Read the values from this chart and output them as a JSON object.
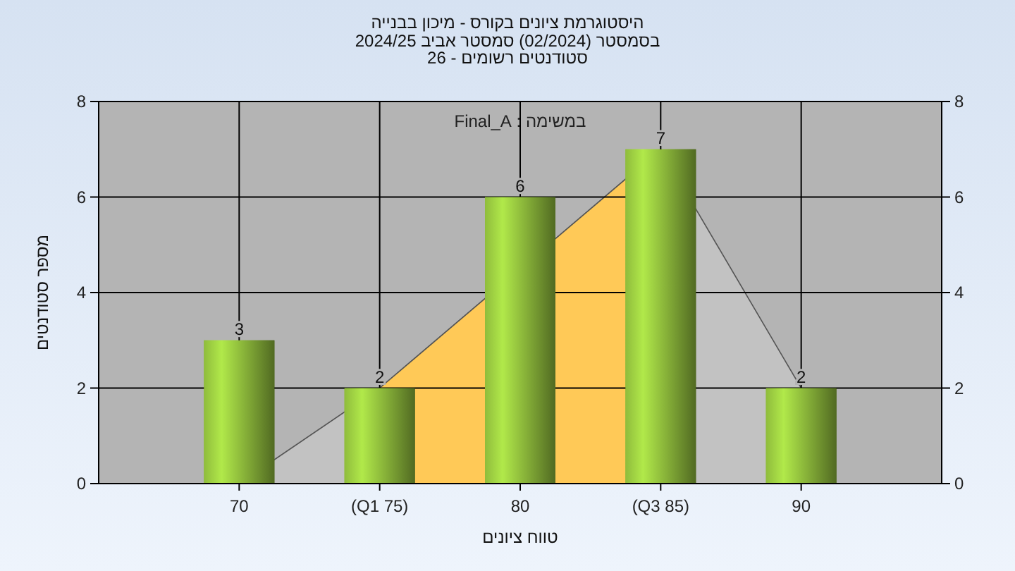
{
  "chart_data": {
    "type": "bar",
    "title": "היסטוגרמת ציונים בקורס - מיכון בבנייה",
    "subtitle": "בסמסטר  (02/2024)  סמסטר אביב 2024/25\nסטודנטים רשומים - 26",
    "xlabel": "טווח ציונים",
    "ylabel": "מספר סטודנטים",
    "annotations": [
      "במשימה : Final_A"
    ],
    "categories": [
      "70",
      "(Q1 75)",
      "80",
      "(Q3 85)",
      "90"
    ],
    "series": [
      {
        "type": "area",
        "color": "#c2c2c2",
        "values": [
          0,
          2,
          null,
          7,
          2
        ]
      },
      {
        "type": "area",
        "color": "#ffc957",
        "values": [
          null,
          2,
          null,
          7,
          null
        ]
      },
      {
        "color": "#8fbc3c",
        "values": [
          3,
          2,
          6,
          7,
          2
        ],
        "value_labels": [
          "3",
          "2",
          "6",
          "7",
          "2"
        ]
      }
    ],
    "ylim": [
      0,
      8
    ],
    "yticks": [
      0,
      2,
      4,
      6,
      8
    ],
    "y2lim": [
      0,
      8
    ],
    "y2ticks": [
      0,
      2,
      4,
      6,
      8
    ],
    "grid": true
  }
}
